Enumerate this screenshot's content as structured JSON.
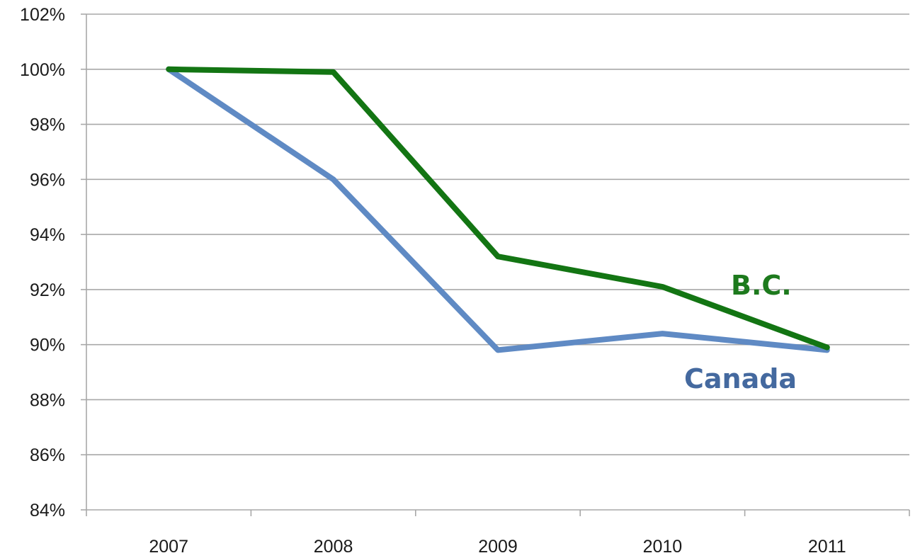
{
  "chart_data": {
    "type": "line",
    "title": "",
    "xlabel": "",
    "ylabel": "",
    "categories": [
      "2007",
      "2008",
      "2009",
      "2010",
      "2011"
    ],
    "ylim": [
      84,
      102
    ],
    "yticks": [
      84,
      86,
      88,
      90,
      92,
      94,
      96,
      98,
      100,
      102
    ],
    "ytick_labels": [
      "84%",
      "86%",
      "88%",
      "90%",
      "92%",
      "94%",
      "96%",
      "98%",
      "100%",
      "102%"
    ],
    "grid": true,
    "legend": "none",
    "series": [
      {
        "name": "B.C.",
        "values": [
          100,
          99.9,
          93.2,
          92.1,
          89.9
        ],
        "color": "#137513"
      },
      {
        "name": "Canada",
        "values": [
          100,
          96.0,
          89.8,
          90.4,
          89.8
        ],
        "color": "#5f8ac4"
      }
    ],
    "annotations": [
      {
        "text": "B.C.",
        "series": "B.C.",
        "color": "#1d7a1d"
      },
      {
        "text": "Canada",
        "series": "Canada",
        "color": "#44699f"
      }
    ]
  }
}
